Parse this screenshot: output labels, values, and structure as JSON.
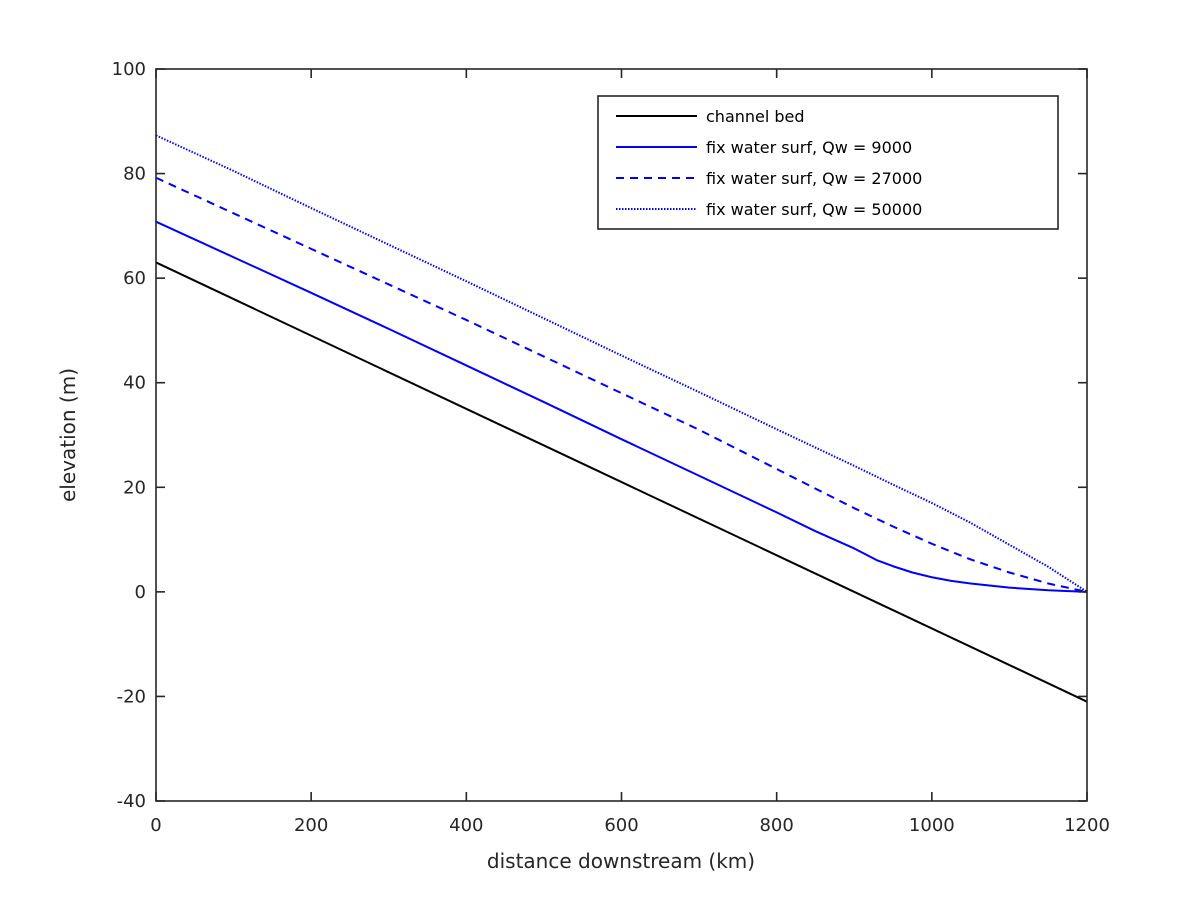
{
  "chart_data": {
    "type": "line",
    "title": "",
    "xlabel": "distance downstream (km)",
    "ylabel": "elevation (m)",
    "xlim": [
      0,
      1200
    ],
    "ylim": [
      -40,
      100
    ],
    "xticks": [
      0,
      200,
      400,
      600,
      800,
      1000,
      1200
    ],
    "yticks": [
      -40,
      -20,
      0,
      20,
      40,
      60,
      80,
      100
    ],
    "grid": false,
    "legend_location": "top-right",
    "series": [
      {
        "name": "channel bed",
        "color": "#000000",
        "line_style": "solid",
        "x": [
          0,
          1200
        ],
        "y": [
          63,
          -21
        ]
      },
      {
        "name": "fix water surf, Qw = 9000",
        "color": "#0000ff",
        "line_style": "solid",
        "x": [
          0,
          100,
          200,
          300,
          400,
          500,
          600,
          700,
          800,
          850,
          900,
          930,
          950,
          975,
          1000,
          1025,
          1050,
          1100,
          1150,
          1200
        ],
        "y": [
          70.8,
          64.0,
          57.2,
          50.3,
          43.3,
          36.3,
          29.2,
          22.2,
          15.2,
          11.6,
          8.3,
          6.0,
          4.9,
          3.7,
          2.8,
          2.1,
          1.6,
          0.8,
          0.3,
          0.0
        ]
      },
      {
        "name": "fix water surf, Qw = 27000",
        "color": "#0000ff",
        "line_style": "dashed",
        "x": [
          0,
          100,
          200,
          300,
          400,
          500,
          600,
          700,
          800,
          900,
          950,
          1000,
          1050,
          1100,
          1150,
          1200
        ],
        "y": [
          79.2,
          72.4,
          65.6,
          58.8,
          52.0,
          45.0,
          38.0,
          31.0,
          23.5,
          16.0,
          12.5,
          9.2,
          6.2,
          3.7,
          1.6,
          0.0
        ]
      },
      {
        "name": "fix water surf, Qw = 50000",
        "color": "#0000ff",
        "line_style": "dotted",
        "x": [
          0,
          100,
          200,
          300,
          400,
          500,
          600,
          700,
          800,
          900,
          950,
          1000,
          1050,
          1100,
          1150,
          1200
        ],
        "y": [
          87.3,
          80.5,
          73.4,
          66.4,
          59.4,
          52.3,
          45.2,
          38.2,
          31.1,
          24.1,
          20.5,
          17.0,
          13.2,
          9.0,
          4.8,
          0.0
        ]
      }
    ]
  }
}
